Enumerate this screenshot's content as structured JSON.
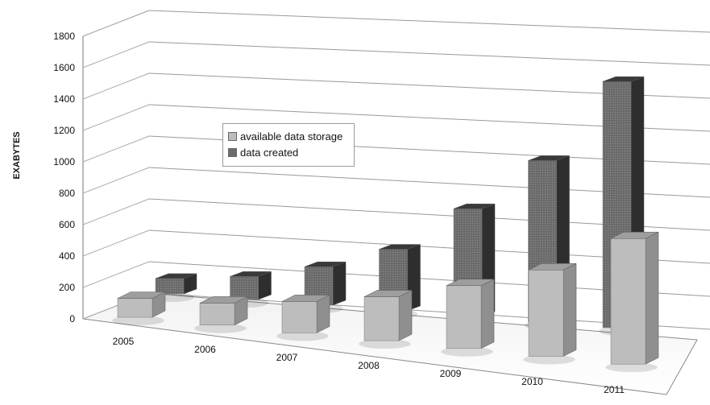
{
  "chart_data": {
    "type": "bar",
    "title": "",
    "ylabel": "EXABYTES",
    "xlabel": "",
    "ylim": [
      0,
      1800
    ],
    "yticks": [
      0,
      200,
      400,
      600,
      800,
      1000,
      1200,
      1400,
      1600,
      1800
    ],
    "categories": [
      "2005",
      "2006",
      "2007",
      "2008",
      "2009",
      "2010",
      "2011"
    ],
    "series": [
      {
        "name": "available data storage",
        "color": "#bdbdbd",
        "values": [
          120,
          140,
          200,
          280,
          400,
          550,
          800
        ]
      },
      {
        "name": "data created",
        "color": "#6b6b6b",
        "values": [
          100,
          150,
          250,
          400,
          700,
          1050,
          1600
        ]
      }
    ],
    "legend_position": "upper-left"
  }
}
